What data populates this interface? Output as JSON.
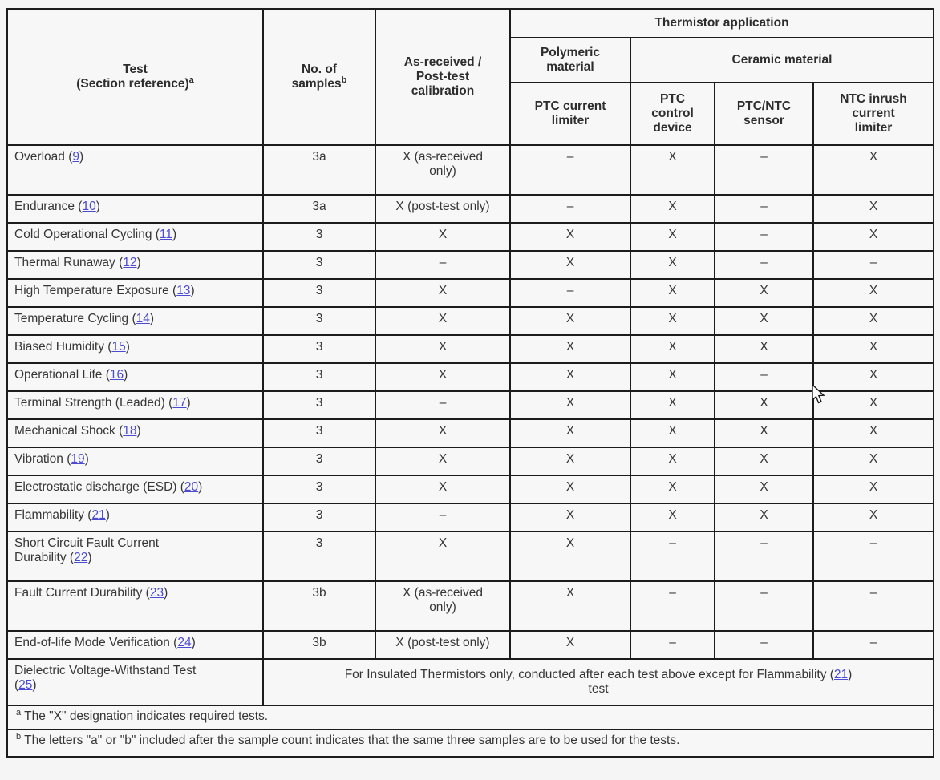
{
  "colors": {
    "link": "#4a4ad2",
    "border": "#1c1c1c",
    "background": "#f5f5f5",
    "text": "#363636"
  },
  "table": {
    "header": {
      "test": "Test\n(Section reference)",
      "test_sup": "a",
      "samples": "No. of\nsamples",
      "samples_sup": "b",
      "calibration": "As-received /\nPost-test\ncalibration",
      "application": "Thermistor application",
      "polymeric": "Polymeric\nmaterial",
      "ceramic": "Ceramic material",
      "app_cols": [
        "PTC current\nlimiter",
        "PTC\ncontrol\ndevice",
        "PTC/NTC\nsensor",
        "NTC inrush\ncurrent\nlimiter"
      ]
    },
    "rows": [
      {
        "test": "Overload",
        "ref": "9",
        "samples": "3a",
        "calibration": "X (as-received\nonly)",
        "apps": [
          "–",
          "X",
          "–",
          "X"
        ]
      },
      {
        "test": "Endurance",
        "ref": "10",
        "samples": "3a",
        "calibration": "X (post-test only)",
        "apps": [
          "–",
          "X",
          "–",
          "X"
        ]
      },
      {
        "test": "Cold Operational Cycling",
        "ref": "11",
        "samples": "3",
        "calibration": "X",
        "apps": [
          "X",
          "X",
          "–",
          "X"
        ]
      },
      {
        "test": "Thermal Runaway",
        "ref": "12",
        "samples": "3",
        "calibration": "–",
        "apps": [
          "X",
          "X",
          "–",
          "–"
        ]
      },
      {
        "test": "High Temperature Exposure",
        "ref": "13",
        "samples": "3",
        "calibration": "X",
        "apps": [
          "–",
          "X",
          "X",
          "X"
        ]
      },
      {
        "test": "Temperature Cycling",
        "ref": "14",
        "samples": "3",
        "calibration": "X",
        "apps": [
          "X",
          "X",
          "X",
          "X"
        ]
      },
      {
        "test": "Biased Humidity",
        "ref": "15",
        "samples": "3",
        "calibration": "X",
        "apps": [
          "X",
          "X",
          "X",
          "X"
        ]
      },
      {
        "test": "Operational Life",
        "ref": "16",
        "samples": "3",
        "calibration": "X",
        "apps": [
          "X",
          "X",
          "–",
          "X"
        ]
      },
      {
        "test": "Terminal Strength (Leaded)",
        "ref": "17",
        "samples": "3",
        "calibration": "–",
        "apps": [
          "X",
          "X",
          "X",
          "X"
        ]
      },
      {
        "test": "Mechanical Shock",
        "ref": "18",
        "samples": "3",
        "calibration": "X",
        "apps": [
          "X",
          "X",
          "X",
          "X"
        ]
      },
      {
        "test": "Vibration",
        "ref": "19",
        "samples": "3",
        "calibration": "X",
        "apps": [
          "X",
          "X",
          "X",
          "X"
        ]
      },
      {
        "test": "Electrostatic discharge (ESD)",
        "ref": "20",
        "samples": "3",
        "calibration": "X",
        "apps": [
          "X",
          "X",
          "X",
          "X"
        ]
      },
      {
        "test": "Flammability",
        "ref": "21",
        "samples": "3",
        "calibration": "–",
        "apps": [
          "X",
          "X",
          "X",
          "X"
        ]
      },
      {
        "test": "Short Circuit Fault Current\nDurability",
        "ref": "22",
        "samples": "3",
        "calibration": "X",
        "apps": [
          "X",
          "–",
          "–",
          "–"
        ]
      },
      {
        "test": "Fault Current Durability",
        "ref": "23",
        "samples": "3b",
        "calibration": "X (as-received\nonly)",
        "apps": [
          "X",
          "–",
          "–",
          "–"
        ]
      },
      {
        "test": "End-of-life Mode Verification",
        "ref": "24",
        "samples": "3b",
        "calibration": "X (post-test only)",
        "apps": [
          "X",
          "–",
          "–",
          "–"
        ]
      }
    ],
    "dielectric": {
      "test": "Dielectric Voltage-Withstand Test",
      "ref": "25",
      "note_before": "For Insulated Thermistors only, conducted after each test above except for Flammability (",
      "note_ref": "21",
      "note_after": ")\ntest"
    },
    "footnotes": [
      {
        "marker": "a",
        "text": " The \"X\" designation indicates required tests."
      },
      {
        "marker": "b",
        "text": " The letters \"a\" or \"b\" included after the sample count indicates that the same three samples are to be used for the tests."
      }
    ]
  }
}
